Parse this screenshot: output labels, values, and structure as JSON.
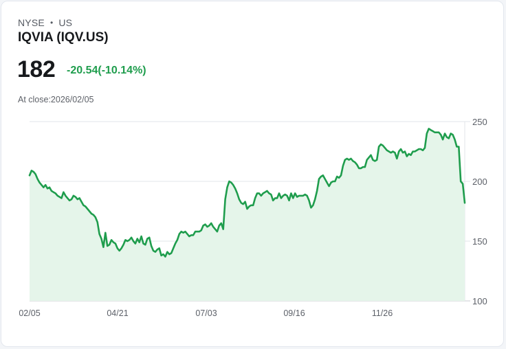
{
  "header": {
    "exchange": "NYSE",
    "separator": "•",
    "country": "US",
    "title": "IQVIA (IQV.US)",
    "price": "182",
    "change": "-20.54(-10.14%)",
    "close_label": "At close:2026/02/05"
  },
  "colors": {
    "line": "#1f9d4d",
    "fill": "#e5f5ea",
    "grid": "#e2e4e8",
    "change": "#1f9d4d"
  },
  "chart_data": {
    "type": "area",
    "title": "IQVIA (IQV.US)",
    "xlabel": "",
    "ylabel": "",
    "ylim": [
      100,
      250
    ],
    "yticks": [
      100,
      150,
      200,
      250
    ],
    "xtick_labels": [
      "02/05",
      "04/21",
      "07/03",
      "09/16",
      "11/26"
    ],
    "grid": true,
    "legend": null,
    "y_axis_position": "right",
    "values": [
      205,
      209,
      208,
      206,
      202,
      199,
      197,
      195,
      197,
      194,
      195,
      192,
      191,
      190,
      188,
      187,
      186,
      191,
      188,
      186,
      184,
      185,
      188,
      187,
      185,
      186,
      183,
      180,
      179,
      177,
      175,
      173,
      172,
      170,
      166,
      156,
      152,
      145,
      157,
      146,
      147,
      151,
      149,
      148,
      144,
      142,
      144,
      147,
      151,
      150,
      151,
      153,
      150,
      148,
      152,
      149,
      154,
      148,
      147,
      152,
      153,
      146,
      142,
      141,
      143,
      144,
      138,
      139,
      137,
      141,
      139,
      140,
      144,
      148,
      151,
      156,
      158,
      157,
      158,
      156,
      154,
      155,
      155,
      158,
      158,
      158,
      159,
      163,
      164,
      162,
      163,
      165,
      162,
      160,
      158,
      163,
      165,
      160,
      185,
      195,
      200,
      199,
      197,
      194,
      190,
      185,
      182,
      181,
      183,
      177,
      179,
      180,
      180,
      186,
      190,
      190,
      188,
      190,
      191,
      192,
      190,
      189,
      184,
      186,
      186,
      190,
      186,
      188,
      189,
      188,
      184,
      190,
      186,
      190,
      187,
      188,
      188,
      188,
      189,
      188,
      184,
      178,
      180,
      185,
      192,
      202,
      204,
      205,
      202,
      199,
      196,
      199,
      200,
      200,
      204,
      203,
      205,
      213,
      218,
      219,
      218,
      219,
      217,
      216,
      214,
      211,
      211,
      212,
      212,
      218,
      220,
      222,
      218,
      217,
      218,
      229,
      231,
      230,
      228,
      226,
      225,
      224,
      225,
      224,
      219,
      225,
      227,
      224,
      225,
      221,
      223,
      222,
      225,
      225,
      226,
      227,
      227,
      226,
      228,
      240,
      244,
      243,
      242,
      241,
      241,
      241,
      239,
      235,
      240,
      237,
      236,
      240,
      239,
      235,
      229,
      229,
      200,
      198,
      182
    ]
  }
}
